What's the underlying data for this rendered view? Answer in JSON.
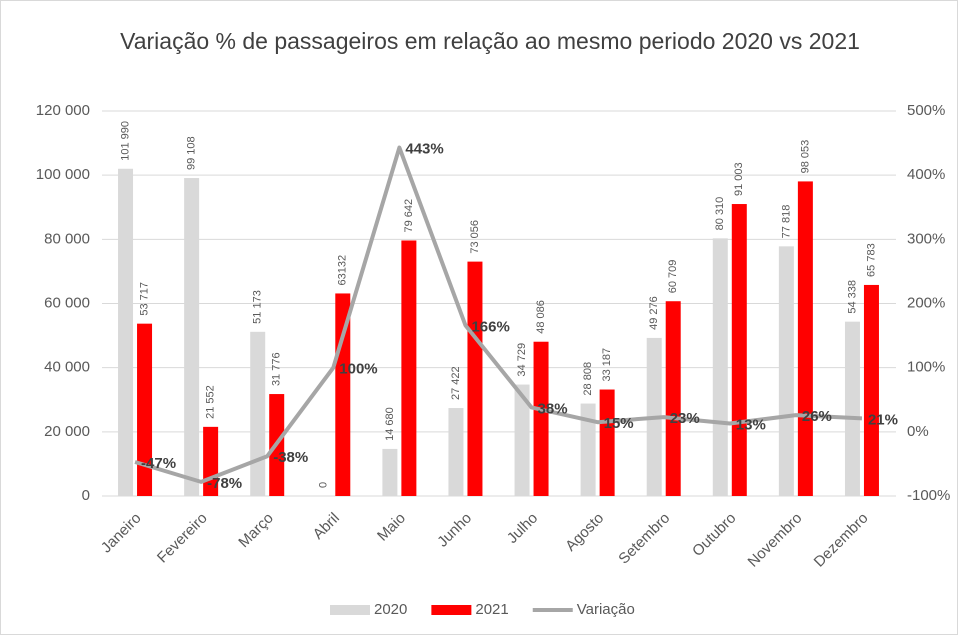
{
  "chart_data": {
    "type": "bar",
    "title": "Variação % de passageiros em relação ao mesmo periodo 2020 vs 2021",
    "categories": [
      "Janeiro",
      "Fevereiro",
      "Março",
      "Abril",
      "Maio",
      "Junho",
      "Julho",
      "Agosto",
      "Setembro",
      "Outubro",
      "Novembro",
      "Dezembro"
    ],
    "series": [
      {
        "name": "2020",
        "color": "#d9d9d9",
        "type": "bar",
        "values": [
          101990,
          99108,
          51173,
          0,
          14680,
          27422,
          34729,
          28808,
          49276,
          80310,
          77818,
          54338
        ],
        "value_labels": [
          "101 990",
          "99 108",
          "51 173",
          "0",
          "14 680",
          "27 422",
          "34 729",
          "28 808",
          "49 276",
          "80 310",
          "77 818",
          "54 338"
        ]
      },
      {
        "name": "2021",
        "color": "#ff0000",
        "type": "bar",
        "values": [
          53717,
          21552,
          31776,
          63132,
          79642,
          73056,
          48086,
          33187,
          60709,
          91003,
          98053,
          65783
        ],
        "value_labels": [
          "53 717",
          "21 552",
          "31 776",
          "63132",
          "79 642",
          "73 056",
          "48 086",
          "33 187",
          "60 709",
          "91 003",
          "98 053",
          "65 783"
        ]
      },
      {
        "name": "Variação",
        "color": "#a6a6a6",
        "type": "line",
        "axis": "y2",
        "values": [
          -47,
          -78,
          -38,
          100,
          443,
          166,
          38,
          15,
          23,
          13,
          26,
          21
        ],
        "value_labels": [
          "-47%",
          "-78%",
          "-38%",
          "100%",
          "443%",
          "166%",
          "38%",
          "15%",
          "23%",
          "13%",
          "26%",
          "21%"
        ]
      }
    ],
    "ylim": [
      0,
      120000
    ],
    "yticks": [
      {
        "value": 0,
        "label": "0"
      },
      {
        "value": 20000,
        "label": "20 000"
      },
      {
        "value": 40000,
        "label": "40 000"
      },
      {
        "value": 60000,
        "label": "60 000"
      },
      {
        "value": 80000,
        "label": "80 000"
      },
      {
        "value": 100000,
        "label": "100 000"
      },
      {
        "value": 120000,
        "label": "120 000"
      }
    ],
    "y2lim": [
      -100,
      500
    ],
    "y2ticks": [
      {
        "value": -100,
        "label": "-100%"
      },
      {
        "value": 0,
        "label": "0%"
      },
      {
        "value": 100,
        "label": "100%"
      },
      {
        "value": 200,
        "label": "200%"
      },
      {
        "value": 300,
        "label": "300%"
      },
      {
        "value": 400,
        "label": "400%"
      },
      {
        "value": 500,
        "label": "500%"
      }
    ],
    "grid": true,
    "legend": "bottom"
  }
}
